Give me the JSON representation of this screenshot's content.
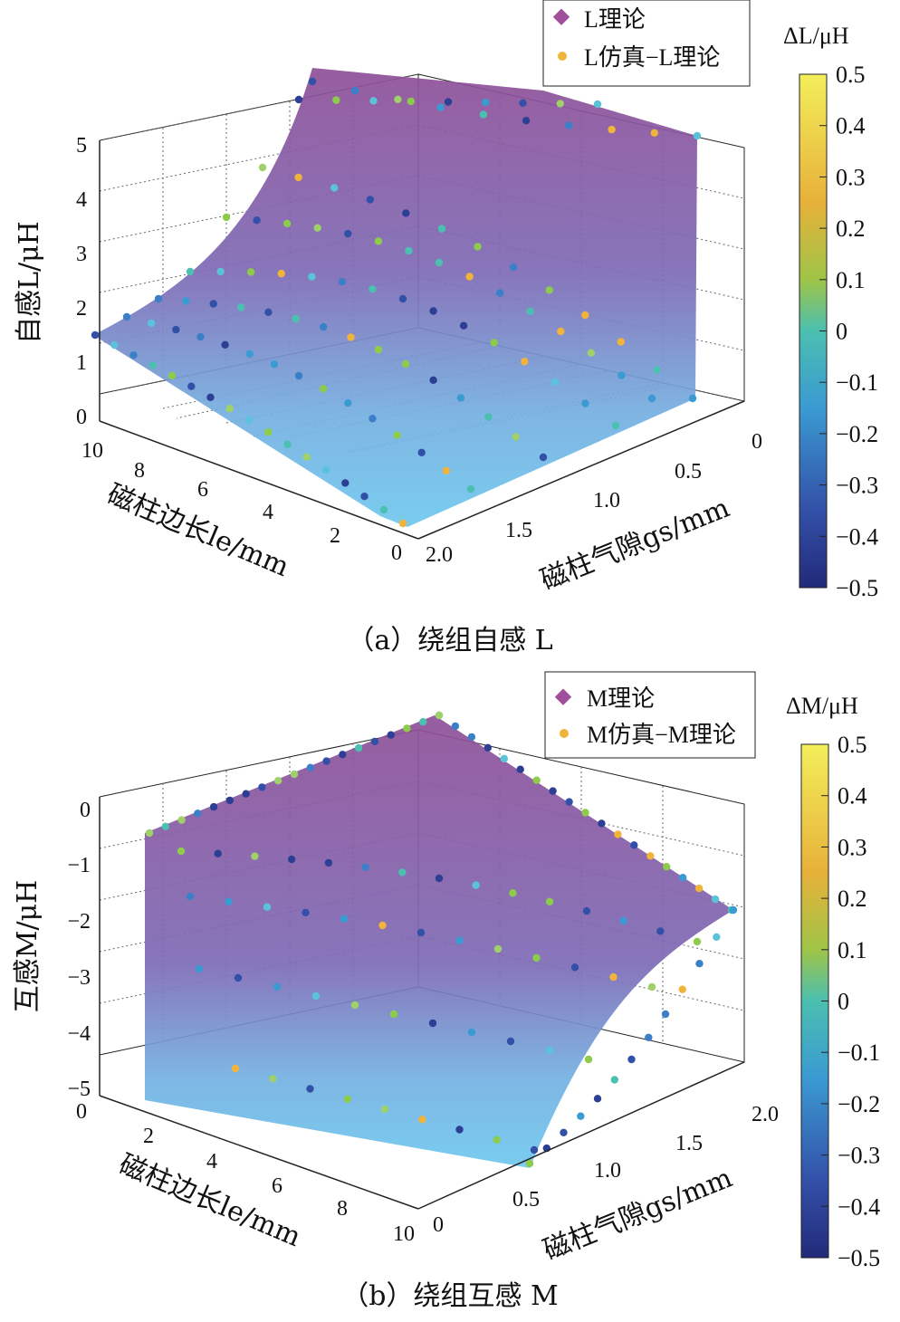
{
  "chart_data": [
    {
      "id": "a",
      "type": "surface3d",
      "caption": "（a）绕组自感 L",
      "zlabel": "自感L/μH",
      "xlabel": "磁柱边长le/mm",
      "ylabel": "磁柱气隙gs/mm",
      "z_ticks": [
        "0",
        "1",
        "2",
        "3",
        "4",
        "5"
      ],
      "x_ticks": [
        "10",
        "8",
        "6",
        "4",
        "2",
        "0"
      ],
      "y_ticks": [
        "0",
        "0.5",
        "1.0",
        "1.5",
        "2.0"
      ],
      "legend": [
        "L理论",
        "L仿真−L理论"
      ],
      "colorbar_title": "ΔL/μH",
      "colorbar_ticks": [
        "0.5",
        "0.4",
        "0.3",
        "0.2",
        "0.1",
        "0",
        "−0.1",
        "−0.2",
        "−0.3",
        "−0.4",
        "−0.5"
      ]
    },
    {
      "id": "b",
      "type": "surface3d",
      "caption": "（b）绕组互感 M",
      "zlabel": "互感M/μH",
      "xlabel": "磁柱边长le/mm",
      "ylabel": "磁柱气隙gs/mm",
      "z_ticks": [
        "0",
        "−1",
        "−2",
        "−3",
        "−4",
        "−5"
      ],
      "x_ticks": [
        "0",
        "2",
        "4",
        "6",
        "8",
        "10"
      ],
      "y_ticks": [
        "0",
        "0.5",
        "1.0",
        "1.5",
        "2.0"
      ],
      "legend": [
        "M理论",
        "M仿真−M理论"
      ],
      "colorbar_title": "ΔM/μH",
      "colorbar_ticks": [
        "0.5",
        "0.4",
        "0.3",
        "0.2",
        "0.1",
        "0",
        "−0.1",
        "−0.2",
        "−0.3",
        "−0.4",
        "−0.5"
      ]
    }
  ],
  "colors": {
    "surface_top": "#8e4f97",
    "surface_bottom": "#6ec8ee",
    "legend_diamond": "#a0509a",
    "legend_dot": "#f0b43c"
  }
}
